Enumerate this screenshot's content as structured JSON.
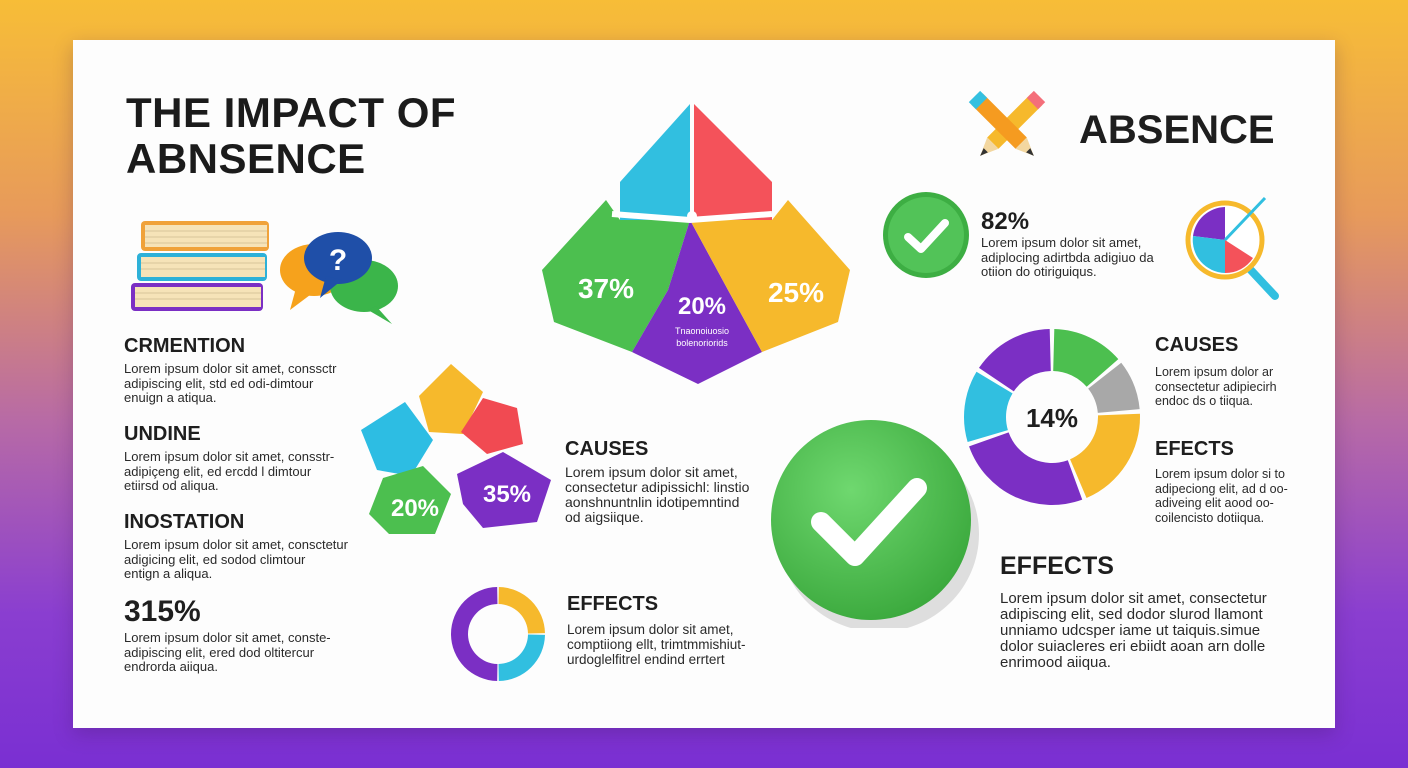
{
  "title": {
    "line1": "THE IMPACT OF",
    "line2": "ABNSENCE"
  },
  "header_right": {
    "label": "ABSENCE"
  },
  "left_list": [
    {
      "heading": "CRMENTION",
      "lines": [
        "Lorem ipsum dolor sit amet, conssctr",
        "adipiscing elit, std ed odi-dimtour",
        "enuign a atiqua."
      ]
    },
    {
      "heading": "UNDINE",
      "lines": [
        "Lorem ipsum dolor sit amet, consstr-",
        "adipiçeng elit, ed ercdd l dimtour",
        "etiirsd od aliqua."
      ]
    },
    {
      "heading": "INOSTATION",
      "lines": [
        "Lorem ipsum dolor sit amet, consctetur",
        "adigicing elit, ed sodod climtour",
        "entign a aliqua."
      ]
    },
    {
      "heading": "315%",
      "lines": [
        "Lorem ipsum dolor sit amet, conste-",
        "adipiscing elit, ered dod oltitercur",
        "endrorda aiiqua."
      ]
    }
  ],
  "top_chart": {
    "segments": [
      {
        "label": "37%",
        "value": 37,
        "color": "#4cbf4f"
      },
      {
        "label": "20%",
        "value": 20,
        "color": "#7b2fc4",
        "sub": [
          "Tnaonoiuosio",
          "bolenoriorids"
        ]
      },
      {
        "label": "25%",
        "value": 25,
        "color": "#f6b92c"
      }
    ],
    "top_colors": {
      "left": "#31bfe0",
      "right": "#f4525a"
    }
  },
  "cluster": {
    "labels": [
      "20%",
      "35%"
    ],
    "colors": {
      "blue": "#2dbde3",
      "yellow": "#f6b92c",
      "red": "#f14a52",
      "green": "#4cbf4f",
      "purple": "#7b2fc4"
    }
  },
  "mid_causes": {
    "heading": "CAUSES",
    "lines": [
      "Lorem ipsum dolor sit amet,",
      "consectetur adipissichl: linstio",
      "aonshnuntnlin idotipemntind",
      "od aigsiique."
    ]
  },
  "mid_effects": {
    "heading": "EFFECTS",
    "lines": [
      "Lorem ipsum dolor sit amet,",
      "comptiiong ellt, trimtmmishiut-",
      "urdoglelfitrel endind errtert"
    ]
  },
  "small_donut": {
    "segments": [
      {
        "value": 25,
        "color": "#f6b92c"
      },
      {
        "value": 25,
        "color": "#31bfe0"
      },
      {
        "value": 50,
        "color": "#7b2fc4"
      }
    ]
  },
  "stat_82": {
    "value": "82%",
    "lines": [
      "Lorem ipsum dolor sit amet,",
      "adiplocing adirtbda adigiuo da",
      "otiion do otiriguiqus."
    ]
  },
  "right_donut": {
    "center_label": "14%",
    "segments": [
      {
        "value": 14,
        "color": "#4cbf4f"
      },
      {
        "value": 10,
        "color": "#a8a8a8"
      },
      {
        "value": 20,
        "color": "#f6b92c"
      },
      {
        "value": 26,
        "color": "#7b2fc4"
      },
      {
        "value": 14,
        "color": "#31bfe0"
      },
      {
        "value": 16,
        "color": "#7b2fc4"
      }
    ]
  },
  "right_causes": {
    "heading": "CAUSES",
    "lines": [
      "Lorem ipsum dolor ar",
      "consectetur adipiecirh",
      "endoc ds o tiiqua."
    ]
  },
  "right_effects": {
    "heading": "EFECTS",
    "lines": [
      "Lorem ipsum dolor si to",
      "adipeciong elit, ad d oo-",
      "adiveing elit aood oo-",
      "coilencisto dotiiqua."
    ]
  },
  "big_effects": {
    "heading": "EFFECTS",
    "lines": [
      "Lorem ipsum dolor sit amet, consectetur",
      "adipiscing elit, sed dodor slurod llamont",
      "unniamo udcsper iame ut taiquis.simue",
      "dolor suiacleres eri ebiidt aoan arn dolle",
      "enrimood aiiqua."
    ]
  },
  "icons": {
    "check_small": "check-circle-icon",
    "check_big": "check-circle-icon",
    "pencils": "crossed-pencils-icon",
    "magnifier": "magnifier-chart-icon",
    "books": "books-icon",
    "chat": "chat-bubbles-icon"
  }
}
